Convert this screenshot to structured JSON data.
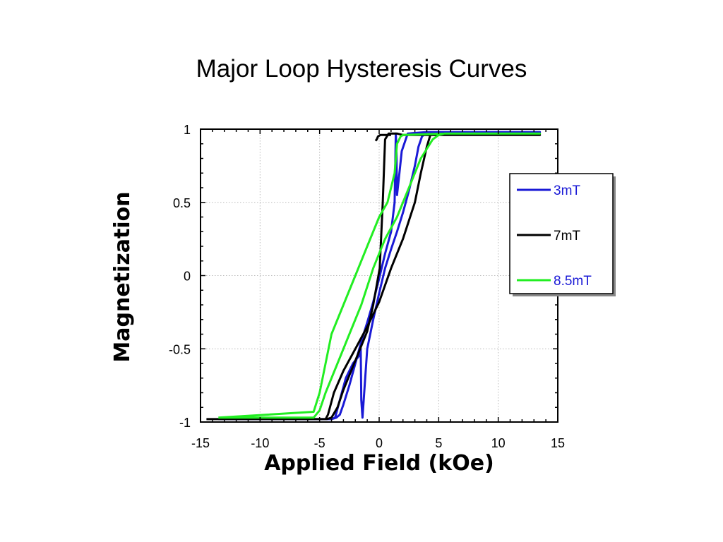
{
  "slide": {
    "title": "Major Loop Hysteresis Curves"
  },
  "chart_data": {
    "type": "line",
    "title": "",
    "xlabel": "Applied Field (kOe)",
    "ylabel": "Magnetization",
    "xlim": [
      -15,
      15
    ],
    "ylim": [
      -1,
      1
    ],
    "xticks": [
      -15,
      -10,
      -5,
      0,
      5,
      10,
      15
    ],
    "yticks": [
      -1,
      -0.5,
      0,
      0.5,
      1
    ],
    "grid": true,
    "legend_position": "right",
    "series": [
      {
        "name": "3mT",
        "color": "#1a1ad6",
        "x": [
          -13.5,
          -4,
          -3.7,
          -3.3,
          -2.8,
          -2.2,
          -1.7,
          -1.55,
          -1.5,
          -1.4,
          -1,
          -0.5,
          0,
          0.5,
          1,
          1.5,
          2,
          2.5,
          3,
          3.3,
          3.6,
          4,
          13.5,
          4,
          2.4,
          1.9,
          1.7,
          1.5,
          1.45,
          1.4,
          1.3,
          1,
          0.5,
          0,
          -0.5,
          -1,
          -1.5,
          -2,
          -2.5,
          -3,
          -3.3,
          -3.6,
          -4,
          -13.5
        ],
        "y": [
          -0.98,
          -0.98,
          -0.97,
          -0.85,
          -0.7,
          -0.6,
          -0.55,
          -0.5,
          -0.85,
          -0.97,
          -0.5,
          -0.3,
          -0.12,
          0.05,
          0.18,
          0.3,
          0.43,
          0.58,
          0.75,
          0.88,
          0.95,
          0.98,
          0.98,
          0.98,
          0.97,
          0.85,
          0.7,
          0.55,
          0.85,
          0.97,
          0.5,
          0.3,
          0.15,
          -0.02,
          -0.18,
          -0.32,
          -0.45,
          -0.6,
          -0.75,
          -0.88,
          -0.95,
          -0.97,
          -0.98,
          -0.98
        ]
      },
      {
        "name": "7mT",
        "color": "#000000",
        "x": [
          -14.5,
          -4.5,
          -4.3,
          -3.8,
          -3,
          -2,
          -1,
          0,
          1,
          2,
          3,
          3.5,
          4,
          4.3,
          13.5,
          4.3,
          2,
          1.5,
          0.8,
          0.5,
          0.3,
          0.05,
          -0.5,
          -1,
          -2,
          -3,
          -3.5,
          -4,
          -4.4,
          -14.5
        ],
        "y": [
          -0.98,
          -0.98,
          -0.95,
          -0.8,
          -0.65,
          -0.5,
          -0.35,
          -0.18,
          0.05,
          0.25,
          0.5,
          0.7,
          0.88,
          0.96,
          0.96,
          0.96,
          0.96,
          0.97,
          0.97,
          0.93,
          0.5,
          0.05,
          -0.2,
          -0.38,
          -0.58,
          -0.78,
          -0.9,
          -0.97,
          -0.98,
          -0.98
        ],
        "x2": [
          -0.3,
          -0.2,
          -0.1,
          0.1,
          0.5,
          1.0
        ],
        "y2": [
          0.92,
          0.93,
          0.95,
          0.96,
          0.96,
          0.96
        ]
      },
      {
        "name": "8.5mT",
        "color": "#22ee22",
        "x": [
          -13.5,
          -5.5,
          -5,
          -4.5,
          -3.5,
          -2.5,
          -1.5,
          -0.5,
          0.5,
          1.5,
          2.5,
          3.5,
          4.5,
          5,
          5.5,
          13.5,
          5.5,
          2,
          1.8,
          1.5,
          1.3,
          0.7,
          0,
          -1,
          -2,
          -3,
          -4,
          -4.5,
          -5,
          -5.5,
          -13.5
        ],
        "y": [
          -0.97,
          -0.97,
          -0.92,
          -0.8,
          -0.6,
          -0.4,
          -0.2,
          0.05,
          0.25,
          0.4,
          0.6,
          0.8,
          0.93,
          0.96,
          0.97,
          0.97,
          0.97,
          0.96,
          0.95,
          0.9,
          0.7,
          0.5,
          0.4,
          0.2,
          0,
          -0.2,
          -0.4,
          -0.6,
          -0.8,
          -0.93,
          -0.97
        ]
      }
    ]
  }
}
